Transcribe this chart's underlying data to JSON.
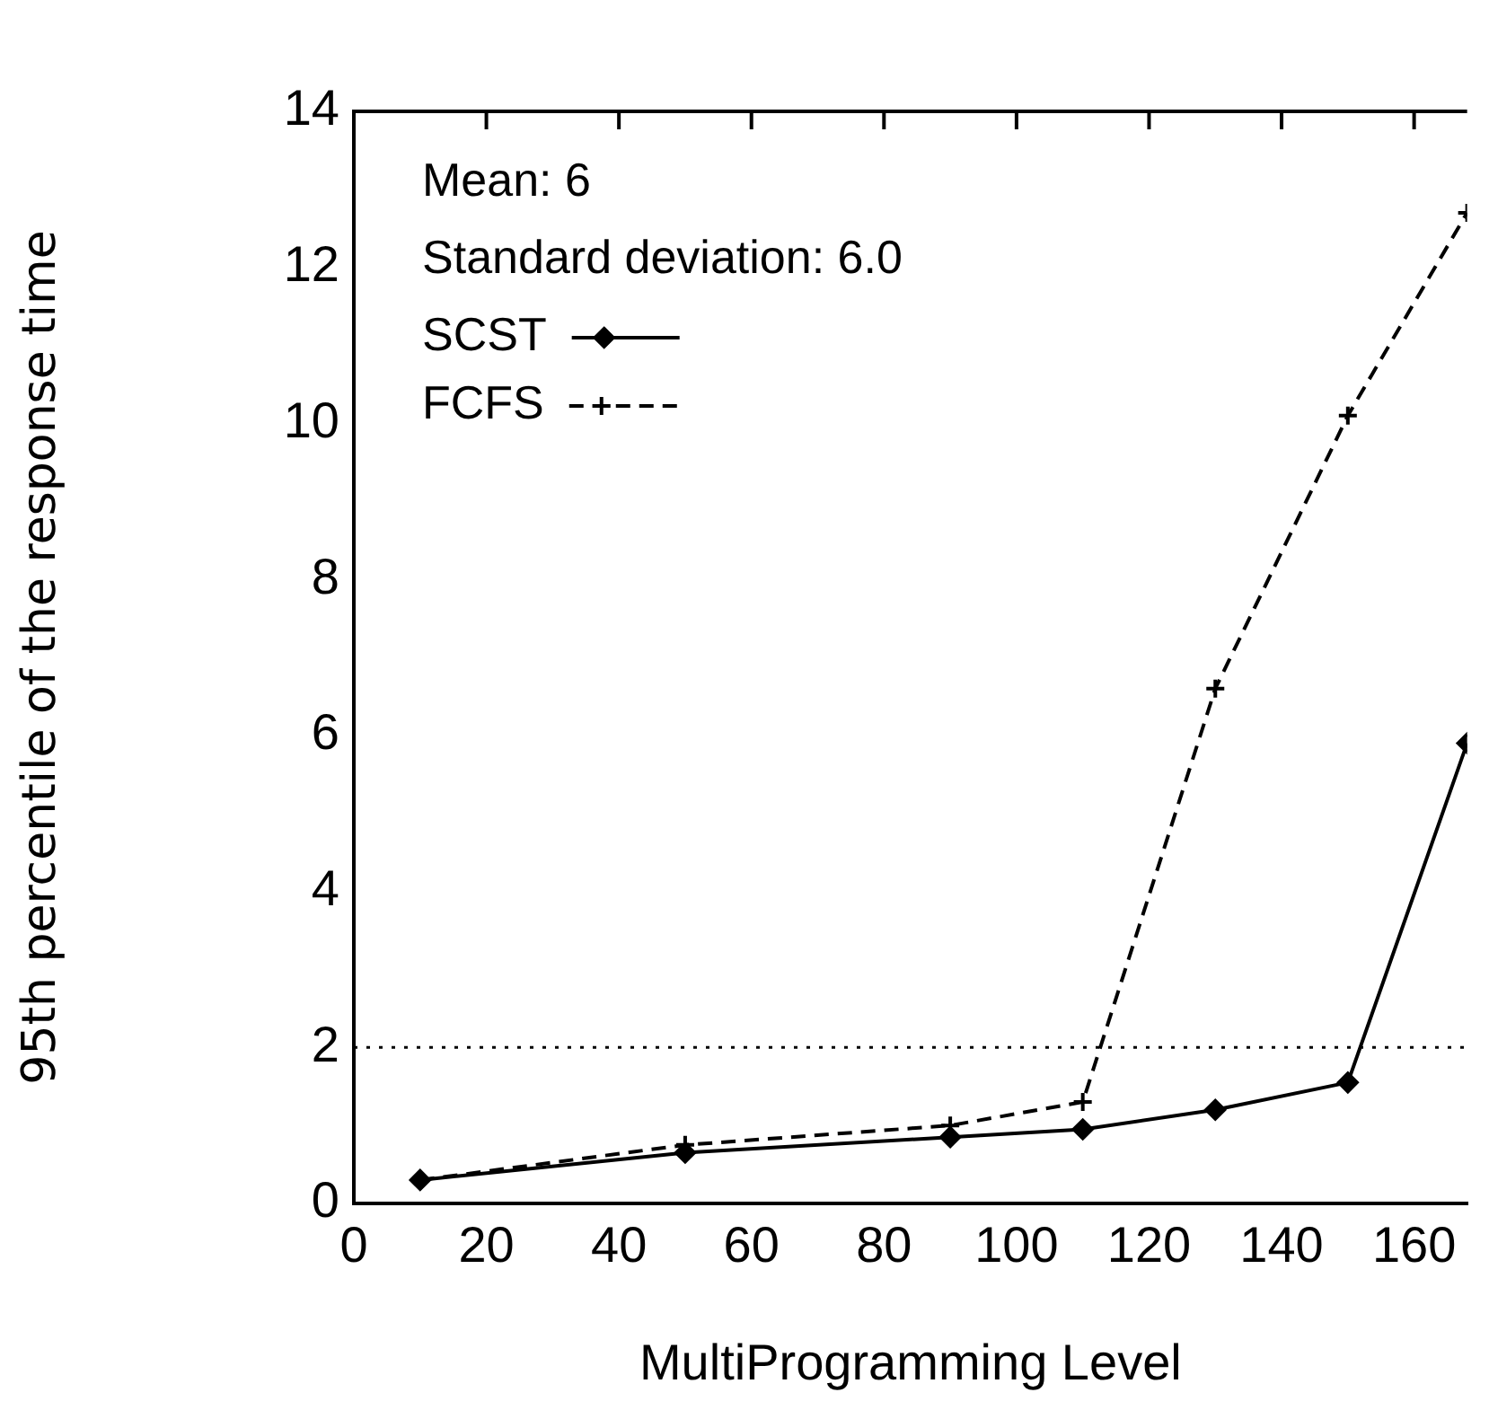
{
  "chart_data": {
    "type": "line",
    "xlabel": "MultiProgramming Level",
    "ylabel": "95th percentile of the response time",
    "xlim": [
      0,
      168
    ],
    "xticks": [
      0,
      20,
      40,
      60,
      80,
      100,
      120,
      140,
      160
    ],
    "ylim": [
      0,
      14
    ],
    "yticks": [
      0,
      2,
      4,
      6,
      8,
      10,
      12,
      14
    ],
    "annotations": [
      "Mean: 6",
      "Standard deviation: 6.0"
    ],
    "legend": "top left",
    "grid": false,
    "ref_lines": [
      {
        "axis": "y",
        "value": 2,
        "color": "#000000",
        "line_style": "dotted"
      }
    ],
    "series": [
      {
        "name": "SCST",
        "color": "#000000",
        "marker": "diamond",
        "line_style": "solid",
        "x": [
          10,
          50,
          90,
          110,
          130,
          150,
          168
        ],
        "values": [
          0.3,
          0.65,
          0.85,
          0.95,
          1.2,
          1.55,
          5.9
        ]
      },
      {
        "name": "FCFS",
        "color": "#000000",
        "marker": "cross",
        "line_style": "dashed",
        "x": [
          10,
          50,
          90,
          110,
          130,
          150,
          168
        ],
        "values": [
          0.3,
          0.75,
          1.0,
          1.3,
          6.6,
          10.1,
          12.7
        ]
      }
    ]
  }
}
